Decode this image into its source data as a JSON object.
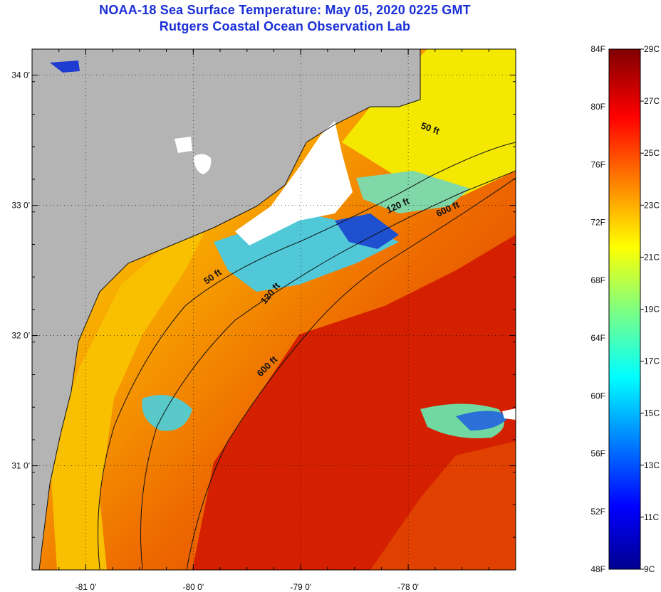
{
  "title": {
    "line1": "NOAA-18 Sea Surface Temperature:  May 05, 2020 0225 GMT",
    "line2": "Rutgers Coastal Ocean Observation Lab"
  },
  "colors": {
    "title": "#1a2fd6",
    "land": "#b4b4b4",
    "cloud": "#ffffff",
    "warm": "#d42000",
    "mid": "#f8c800",
    "cool": "#28c0e0"
  },
  "map": {
    "lon_ticks": [
      {
        "value": -81,
        "label": "-81 0'"
      },
      {
        "value": -80,
        "label": "-80 0'"
      },
      {
        "value": -79,
        "label": "-79 0'"
      },
      {
        "value": -78,
        "label": "-78 0'"
      }
    ],
    "lat_ticks": [
      {
        "value": 34,
        "label": "34 0'"
      },
      {
        "value": 33,
        "label": "33 0'"
      },
      {
        "value": 32,
        "label": "32 0'"
      },
      {
        "value": 31,
        "label": "31 0'"
      }
    ],
    "lon_range": [
      -81.5,
      -77.0
    ],
    "lat_range": [
      30.2,
      34.2
    ],
    "contour_labels": [
      "50 ft",
      "120 ft",
      "600 ft",
      "50 ft",
      "120 ft",
      "600 ft"
    ]
  },
  "colorbar": {
    "fahrenheit": [
      "84F",
      "80F",
      "76F",
      "72F",
      "68F",
      "64F",
      "60F",
      "56F",
      "52F",
      "48F"
    ],
    "celsius": [
      "29C",
      "27C",
      "25C",
      "23C",
      "21C",
      "19C",
      "17C",
      "15C",
      "13C",
      "11C",
      "9C"
    ]
  }
}
